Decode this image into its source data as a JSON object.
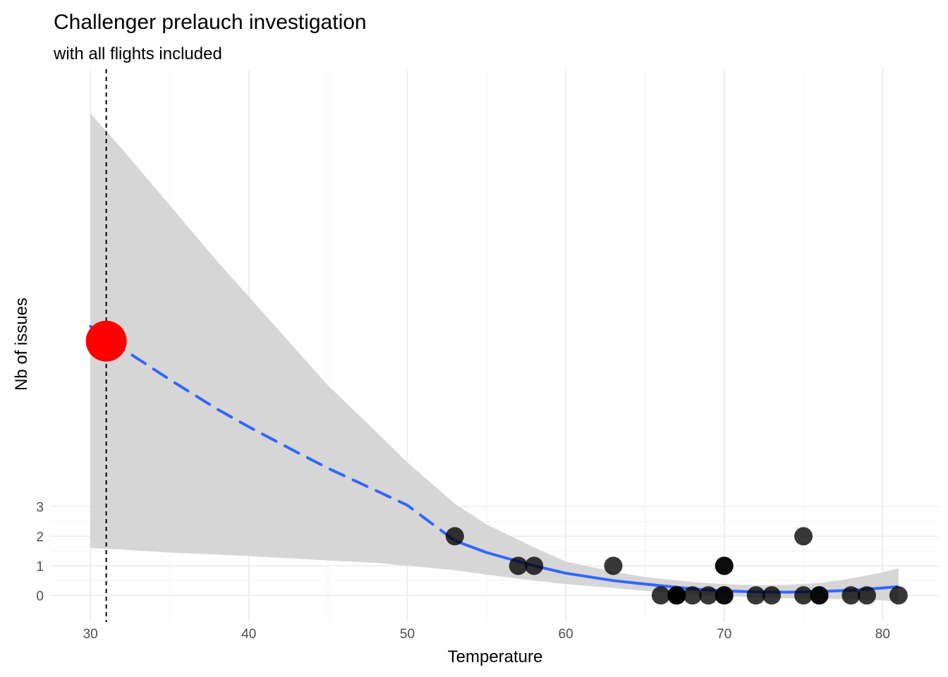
{
  "chart_data": {
    "type": "scatter",
    "title": "Challenger prelauch investigation",
    "subtitle": "with all flights included",
    "xlabel": "Temperature",
    "ylabel": "Nb of issues",
    "xlim": [
      27.5,
      83.5
    ],
    "ylim": [
      -0.9,
      17.8
    ],
    "x_ticks": [
      30,
      40,
      50,
      60,
      70,
      80
    ],
    "y_ticks": [
      0,
      1,
      2,
      3
    ],
    "grid": true,
    "legend": "none",
    "colors": {
      "points": "#000000",
      "fit": "#3366ff",
      "ribbon": "#d4d4d4",
      "highlight": "#ff0000",
      "vline": "#000000"
    },
    "points": [
      {
        "x": 53,
        "y": 2
      },
      {
        "x": 57,
        "y": 1
      },
      {
        "x": 58,
        "y": 1
      },
      {
        "x": 63,
        "y": 1
      },
      {
        "x": 66,
        "y": 0
      },
      {
        "x": 67,
        "y": 0
      },
      {
        "x": 67,
        "y": 0
      },
      {
        "x": 67,
        "y": 0
      },
      {
        "x": 68,
        "y": 0
      },
      {
        "x": 69,
        "y": 0
      },
      {
        "x": 70,
        "y": 0
      },
      {
        "x": 70,
        "y": 0
      },
      {
        "x": 70,
        "y": 1
      },
      {
        "x": 70,
        "y": 1
      },
      {
        "x": 72,
        "y": 0
      },
      {
        "x": 73,
        "y": 0
      },
      {
        "x": 75,
        "y": 0
      },
      {
        "x": 75,
        "y": 2
      },
      {
        "x": 76,
        "y": 0
      },
      {
        "x": 76,
        "y": 0
      },
      {
        "x": 78,
        "y": 0
      },
      {
        "x": 79,
        "y": 0
      },
      {
        "x": 81,
        "y": 0
      }
    ],
    "highlight_point": {
      "x": 31,
      "y": 8.6
    },
    "vline_x": 31,
    "fit": {
      "x": [
        30,
        32,
        35,
        38,
        40,
        43,
        45,
        48,
        50,
        53,
        55,
        58,
        60,
        63,
        65,
        68,
        70,
        72,
        74,
        76,
        78,
        80,
        81
      ],
      "y": [
        9.1,
        8.35,
        7.3,
        6.3,
        5.7,
        4.85,
        4.3,
        3.55,
        3.05,
        1.85,
        1.45,
        1.0,
        0.75,
        0.5,
        0.38,
        0.22,
        0.15,
        0.12,
        0.11,
        0.13,
        0.17,
        0.25,
        0.3
      ],
      "ci_lower": [
        1.6,
        1.55,
        1.45,
        1.38,
        1.33,
        1.24,
        1.18,
        1.1,
        1.0,
        0.85,
        0.7,
        0.5,
        0.38,
        0.25,
        0.15,
        0.05,
        -0.02,
        -0.07,
        -0.1,
        -0.12,
        -0.13,
        -0.17,
        -0.2
      ],
      "ci_upper": [
        16.3,
        15.1,
        13.2,
        11.3,
        10.1,
        8.3,
        7.1,
        5.55,
        4.5,
        3.1,
        2.4,
        1.62,
        1.15,
        0.8,
        0.62,
        0.45,
        0.38,
        0.34,
        0.36,
        0.42,
        0.57,
        0.78,
        0.92
      ],
      "extrapolated_below_x": 53
    }
  }
}
